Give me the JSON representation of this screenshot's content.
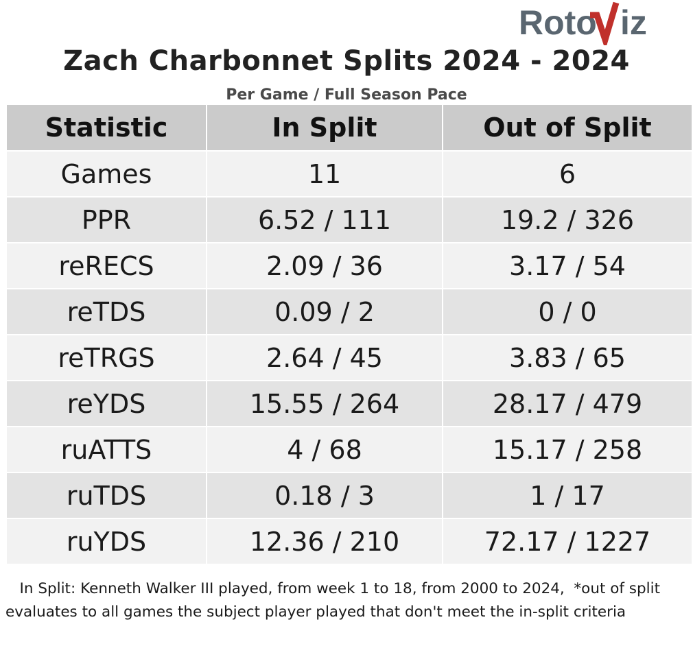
{
  "brand": {
    "logo_text": "RotoViz",
    "colors": {
      "gray": "#5a6670",
      "red": "#c0302b"
    }
  },
  "title": "Zach Charbonnet Splits 2024 - 2024",
  "subtitle": "Per Game / Full Season Pace",
  "chart_data": {
    "type": "table",
    "columns": [
      "Statistic",
      "In Split",
      "Out of Split"
    ],
    "rows": [
      [
        "Games",
        "11",
        "6"
      ],
      [
        "PPR",
        "6.52 / 111",
        "19.2 / 326"
      ],
      [
        "reRECS",
        "2.09 / 36",
        "3.17 / 54"
      ],
      [
        "reTDS",
        "0.09 / 2",
        "0 / 0"
      ],
      [
        "reTRGS",
        "2.64 / 45",
        "3.83 / 65"
      ],
      [
        "reYDS",
        "15.55 / 264",
        "28.17 / 479"
      ],
      [
        "ruATTS",
        "4 / 68",
        "15.17 / 258"
      ],
      [
        "ruTDS",
        "0.18 / 3",
        "1 / 17"
      ],
      [
        "ruYDS",
        "12.36 / 210",
        "72.17 / 1227"
      ]
    ]
  },
  "footnote": "   In Split: Kenneth Walker III played, from week 1 to 18, from 2000 to 2024,  *out of split evaluates to all games the subject player played that don't meet the in-split criteria"
}
